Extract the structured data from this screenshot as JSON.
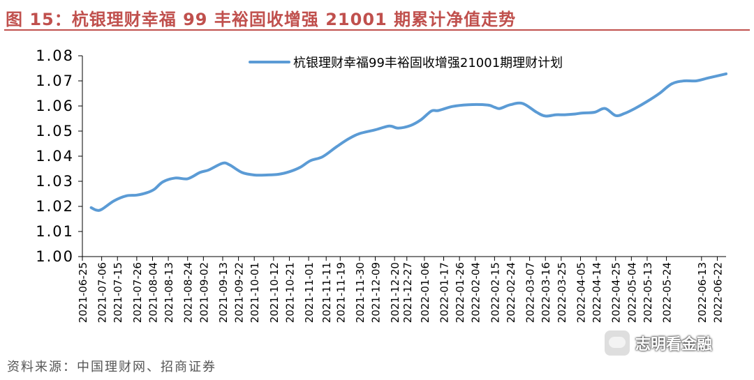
{
  "figure": {
    "title": "图 15：杭银理财幸福 99 丰裕固收增强 21001 期累计净值走势",
    "source": "资料来源：中国理财网、招商证券",
    "watermark": "志明看金融",
    "colors": {
      "title": "#c0504d",
      "line": "#5b9bd5",
      "axis": "#000000"
    }
  },
  "chart_data": {
    "type": "line",
    "title": "",
    "xlabel": "",
    "ylabel": "",
    "ylim": [
      1.0,
      1.08
    ],
    "yticks": [
      "1.08",
      "1.07",
      "1.06",
      "1.05",
      "1.04",
      "1.03",
      "1.02",
      "1.01",
      "1.00"
    ],
    "ytick_values": [
      1.08,
      1.07,
      1.06,
      1.05,
      1.04,
      1.03,
      1.02,
      1.01,
      1.0
    ],
    "grid": false,
    "legend_position": "top-center",
    "categories": [
      "2021-06-25",
      "2021-07-06",
      "2021-07-15",
      "2021-07-26",
      "2021-08-04",
      "2021-08-13",
      "2021-08-24",
      "2021-09-02",
      "2021-09-13",
      "2021-09-22",
      "2021-10-01",
      "2021-10-12",
      "2021-10-21",
      "2021-11-01",
      "2021-11-11",
      "2021-11-19",
      "2021-11-30",
      "2021-12-09",
      "2021-12-20",
      "2021-12-27",
      "2022-01-06",
      "2022-01-17",
      "2022-01-26",
      "2022-02-04",
      "2022-02-15",
      "2022-02-24",
      "2022-03-07",
      "2022-03-16",
      "2022-03-25",
      "2022-04-05",
      "2022-04-14",
      "2022-04-25",
      "2022-05-04",
      "2022-05-13",
      "2022-05-24",
      "2022-06-13",
      "2022-06-22"
    ],
    "series": [
      {
        "name": "杭银理财幸福99丰裕固收增强21001期理财计划",
        "color": "#5b9bd5",
        "points": [
          [
            "2021-06-30",
            1.0195
          ],
          [
            "2021-07-03",
            1.0185
          ],
          [
            "2021-07-06",
            1.0188
          ],
          [
            "2021-07-13",
            1.0222
          ],
          [
            "2021-07-20",
            1.0242
          ],
          [
            "2021-07-26",
            1.0245
          ],
          [
            "2021-08-01",
            1.0255
          ],
          [
            "2021-08-05",
            1.0268
          ],
          [
            "2021-08-10",
            1.0298
          ],
          [
            "2021-08-17",
            1.0313
          ],
          [
            "2021-08-24",
            1.031
          ],
          [
            "2021-08-31",
            1.0335
          ],
          [
            "2021-09-05",
            1.0345
          ],
          [
            "2021-09-13",
            1.0372
          ],
          [
            "2021-09-17",
            1.0365
          ],
          [
            "2021-09-24",
            1.0335
          ],
          [
            "2021-10-01",
            1.0325
          ],
          [
            "2021-10-08",
            1.0325
          ],
          [
            "2021-10-15",
            1.0328
          ],
          [
            "2021-10-21",
            1.0338
          ],
          [
            "2021-10-27",
            1.0355
          ],
          [
            "2021-11-02",
            1.0382
          ],
          [
            "2021-11-09",
            1.0398
          ],
          [
            "2021-11-17",
            1.0438
          ],
          [
            "2021-11-24",
            1.047
          ],
          [
            "2021-11-30",
            1.049
          ],
          [
            "2021-12-09",
            1.0505
          ],
          [
            "2021-12-17",
            1.052
          ],
          [
            "2021-12-22",
            1.0512
          ],
          [
            "2021-12-29",
            1.0522
          ],
          [
            "2022-01-04",
            1.0545
          ],
          [
            "2022-01-10",
            1.058
          ],
          [
            "2022-01-14",
            1.0582
          ],
          [
            "2022-01-22",
            1.0598
          ],
          [
            "2022-01-31",
            1.0605
          ],
          [
            "2022-02-11",
            1.0604
          ],
          [
            "2022-02-15",
            1.0595
          ],
          [
            "2022-02-18",
            1.059
          ],
          [
            "2022-02-24",
            1.0605
          ],
          [
            "2022-03-03",
            1.061
          ],
          [
            "2022-03-11",
            1.0575
          ],
          [
            "2022-03-16",
            1.056
          ],
          [
            "2022-03-22",
            1.0565
          ],
          [
            "2022-03-27",
            1.0565
          ],
          [
            "2022-04-02",
            1.0568
          ],
          [
            "2022-04-06",
            1.0572
          ],
          [
            "2022-04-13",
            1.0575
          ],
          [
            "2022-04-19",
            1.059
          ],
          [
            "2022-04-25",
            1.0562
          ],
          [
            "2022-04-30",
            1.057
          ],
          [
            "2022-05-06",
            1.059
          ],
          [
            "2022-05-13",
            1.0618
          ],
          [
            "2022-05-20",
            1.065
          ],
          [
            "2022-05-27",
            1.0688
          ],
          [
            "2022-06-03",
            1.07
          ],
          [
            "2022-06-10",
            1.07
          ],
          [
            "2022-06-17",
            1.0712
          ],
          [
            "2022-06-27",
            1.0728
          ]
        ]
      }
    ]
  }
}
